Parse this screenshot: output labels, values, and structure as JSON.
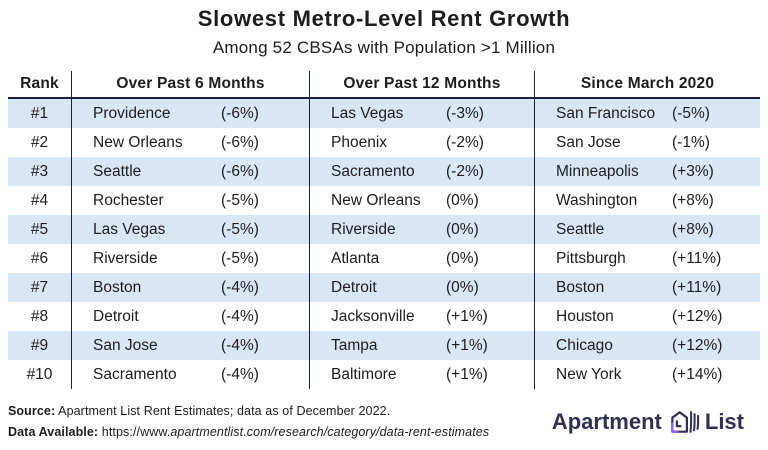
{
  "header": {
    "title": "Slowest Metro-Level Rent Growth",
    "subtitle": "Among 52 CBSAs with Population >1 Million"
  },
  "chart_data": {
    "type": "table",
    "title": "Slowest Metro-Level Rent Growth",
    "subtitle": "Among 52 CBSAs with Population >1 Million",
    "columns": [
      "Rank",
      "Over Past 6 Months",
      "Over Past 12 Months",
      "Since March 2020"
    ],
    "rows": [
      {
        "rank": "#1",
        "m6_city": "Providence",
        "m6_pct": "(-6%)",
        "m12_city": "Las Vegas",
        "m12_pct": "(-3%)",
        "since_city": "San Francisco",
        "since_pct": "(-5%)"
      },
      {
        "rank": "#2",
        "m6_city": "New Orleans",
        "m6_pct": "(-6%)",
        "m12_city": "Phoenix",
        "m12_pct": "(-2%)",
        "since_city": "San Jose",
        "since_pct": "(-1%)"
      },
      {
        "rank": "#3",
        "m6_city": "Seattle",
        "m6_pct": "(-6%)",
        "m12_city": "Sacramento",
        "m12_pct": "(-2%)",
        "since_city": "Minneapolis",
        "since_pct": "(+3%)"
      },
      {
        "rank": "#4",
        "m6_city": "Rochester",
        "m6_pct": "(-5%)",
        "m12_city": "New Orleans",
        "m12_pct": "(0%)",
        "since_city": "Washington",
        "since_pct": "(+8%)"
      },
      {
        "rank": "#5",
        "m6_city": "Las Vegas",
        "m6_pct": "(-5%)",
        "m12_city": "Riverside",
        "m12_pct": "(0%)",
        "since_city": "Seattle",
        "since_pct": "(+8%)"
      },
      {
        "rank": "#6",
        "m6_city": "Riverside",
        "m6_pct": "(-5%)",
        "m12_city": "Atlanta",
        "m12_pct": "(0%)",
        "since_city": "Pittsburgh",
        "since_pct": "(+11%)"
      },
      {
        "rank": "#7",
        "m6_city": "Boston",
        "m6_pct": "(-4%)",
        "m12_city": "Detroit",
        "m12_pct": "(0%)",
        "since_city": "Boston",
        "since_pct": "(+11%)"
      },
      {
        "rank": "#8",
        "m6_city": "Detroit",
        "m6_pct": "(-4%)",
        "m12_city": "Jacksonville",
        "m12_pct": "(+1%)",
        "since_city": "Houston",
        "since_pct": "(+12%)"
      },
      {
        "rank": "#9",
        "m6_city": "San Jose",
        "m6_pct": "(-4%)",
        "m12_city": "Tampa",
        "m12_pct": "(+1%)",
        "since_city": "Chicago",
        "since_pct": "(+12%)"
      },
      {
        "rank": "#10",
        "m6_city": "Sacramento",
        "m6_pct": "(-4%)",
        "m12_city": "Baltimore",
        "m12_pct": "(+1%)",
        "since_city": "New York",
        "since_pct": "(+14%)"
      }
    ],
    "row_alt_color": "#d9e7f4",
    "grid": "column dividers and header underline only"
  },
  "footer": {
    "source_label": "Source:",
    "source_text": "Apartment List Rent Estimates; data as of December 2022.",
    "data_label": "Data Available:",
    "data_url_prefix": "https://www.",
    "data_url_rest": "apartmentlist.com/research/category/data-rent-estimates"
  },
  "logo": {
    "left": "Apartment",
    "right": "List",
    "navy": "#32324e",
    "purple": "#8b5cf6"
  }
}
